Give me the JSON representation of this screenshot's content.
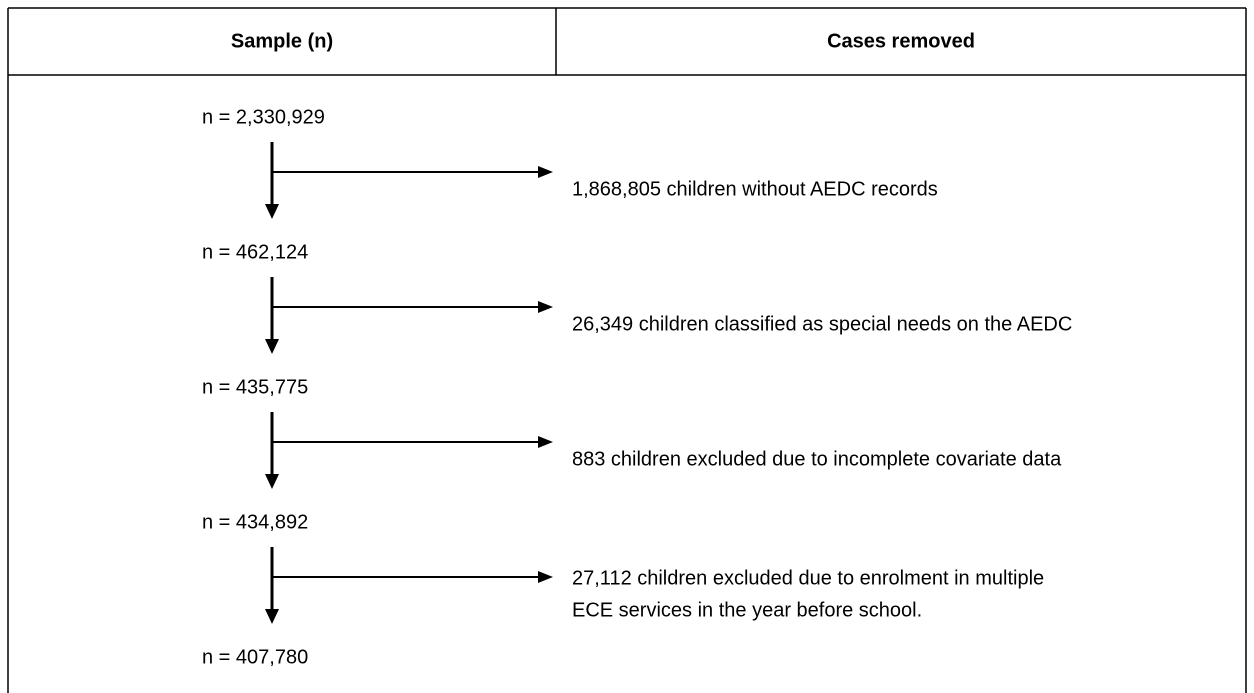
{
  "header": {
    "columns": [
      "Sample (n)",
      "Cases removed"
    ]
  },
  "samples": [
    "n = 2,330,929",
    "n = 462,124",
    "n = 435,775",
    "n = 434,892",
    "n = 407,780"
  ],
  "removed": [
    {
      "lines": [
        "1,868,805 children without AEDC records"
      ]
    },
    {
      "lines": [
        "26,349 children classified as special needs on the AEDC"
      ]
    },
    {
      "lines": [
        "883 children excluded due to incomplete covariate data"
      ]
    },
    {
      "lines": [
        "27,112 children excluded due to enrolment in multiple",
        "ECE services in the year before school."
      ]
    }
  ]
}
